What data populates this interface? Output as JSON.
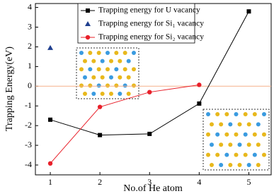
{
  "chart_data": {
    "type": "line",
    "x_label": "No.of He atom",
    "y_label": "Trapping Energy(eV)",
    "x": [
      1,
      2,
      3,
      4,
      5
    ],
    "xlim": [
      0.7,
      5.45
    ],
    "xticks": [
      1,
      2,
      3,
      4,
      5
    ],
    "ylim": [
      -4.5,
      4.2
    ],
    "yticks": [
      -4,
      -3,
      -2,
      -1,
      0,
      1,
      2,
      3,
      4
    ],
    "reference_line": {
      "value": 0,
      "color": "#f5b08a"
    },
    "legend": "upper center",
    "series": [
      {
        "name": "Trapping energy for U vacancy",
        "color": "#000000",
        "marker": "square",
        "line": true,
        "values": [
          -1.7,
          -2.48,
          -2.42,
          -0.88,
          3.8
        ]
      },
      {
        "name": "Trapping energy for Si₁ vacancy",
        "color": "#1f3f8f",
        "marker": "triangle",
        "line": false,
        "values": [
          1.95,
          null,
          null,
          null,
          null
        ]
      },
      {
        "name": "Trapping energy for Si₂ vacancy",
        "color": "#e8202a",
        "marker": "circle",
        "line": true,
        "values": [
          -3.92,
          -1.05,
          -0.3,
          0.07,
          null
        ]
      }
    ]
  }
}
